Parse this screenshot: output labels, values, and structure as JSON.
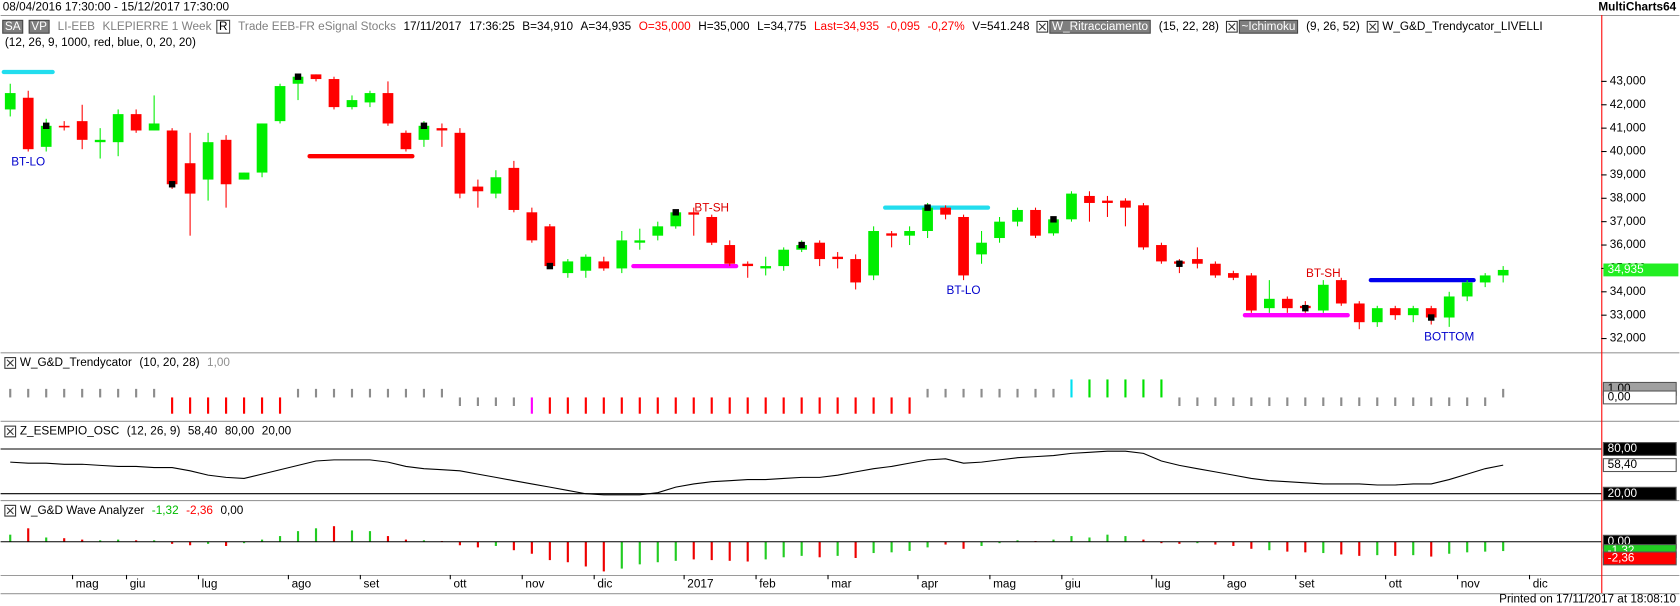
{
  "top": {
    "range": "08/04/2016 17:30:00 - 15/12/2017 17:30:00",
    "brand": "MultiCharts64"
  },
  "footer": "Printed on 17/11/2017 at 18:08:10",
  "chart_data": [
    {
      "type": "candlestick",
      "header": [
        {
          "text": "SA",
          "box": "#7f7f7f",
          "color": "#ffffff"
        },
        {
          "text": "VP",
          "box": "#7f7f7f",
          "color": "#ffffff"
        },
        {
          "text": "LI-EEB",
          "color": "#808080"
        },
        {
          "text": "KLEPIERRE 1 Week",
          "color": "#808080"
        },
        {
          "text": "R",
          "box": "#ffffff"
        },
        {
          "text": "Trade EEB-FR eSignal Stocks",
          "color": "#808080"
        },
        {
          "text": "17/11/2017"
        },
        {
          "text": "17:36:25"
        },
        {
          "text": "B=34,910"
        },
        {
          "text": "A=34,935"
        },
        {
          "text": "O=35,000",
          "color": "#ff0000"
        },
        {
          "text": "H=35,000"
        },
        {
          "text": "L=34,775"
        },
        {
          "text": "Last=34,935",
          "color": "#ff0000"
        },
        {
          "text": "-0,095",
          "color": "#ff0000"
        },
        {
          "text": "-0,27%",
          "color": "#ff0000"
        },
        {
          "text": "V=541.248"
        },
        {
          "text": "W_Ritracciamento",
          "box": "#7f7f7f",
          "color": "#ffffff",
          "check": true
        },
        {
          "text": "(15, 22, 28)"
        },
        {
          "text": "~Ichimoku",
          "box": "#7f7f7f",
          "color": "#ffffff",
          "check": true
        },
        {
          "text": "(9, 26, 52)"
        },
        {
          "text": "W_G&D_Trendycator_LIVELLI",
          "check": true
        }
      ],
      "subheader": "(12, 26, 9, 1000, red, blue, 0, 20, 20)",
      "categories": [
        null,
        null,
        null,
        null,
        "mag",
        null,
        null,
        "giu",
        null,
        null,
        null,
        "lug",
        null,
        null,
        null,
        null,
        "ago",
        null,
        null,
        null,
        "set",
        null,
        null,
        null,
        null,
        "ott",
        null,
        null,
        null,
        "nov",
        null,
        null,
        null,
        "dic",
        null,
        null,
        null,
        null,
        "2017",
        null,
        null,
        null,
        "feb",
        null,
        null,
        null,
        "mar",
        null,
        null,
        null,
        null,
        "apr",
        null,
        null,
        null,
        "mag",
        null,
        null,
        null,
        "giu",
        null,
        null,
        null,
        null,
        "lug",
        null,
        null,
        null,
        "ago",
        null,
        null,
        null,
        "set",
        null,
        null,
        null,
        null,
        "ott",
        null,
        null,
        null,
        "nov",
        null,
        null,
        null,
        "dic"
      ],
      "open": [
        41800,
        42300,
        40200,
        41100,
        41300,
        40400,
        40400,
        41600,
        40900,
        40900,
        39500,
        38800,
        40500,
        38800,
        39100,
        41300,
        42900,
        43300,
        43100,
        41900,
        42100,
        42500,
        40800,
        40500,
        41000,
        40800,
        38500,
        38200,
        39300,
        37400,
        36800,
        34800,
        34900,
        35300,
        35000,
        36100,
        36400,
        36800,
        37400,
        37200,
        36000,
        35200,
        35000,
        35100,
        35800,
        36100,
        35500,
        35400,
        34700,
        36500,
        36400,
        36600,
        37600,
        37200,
        35600,
        36300,
        37000,
        37500,
        36500,
        37100,
        38100,
        37900,
        37900,
        37700,
        36000,
        35300,
        35400,
        35200,
        34800,
        34700,
        33300,
        33700,
        33400,
        33200,
        34500,
        33500,
        32700,
        33300,
        33000,
        33300,
        32900,
        33800,
        34400,
        34700,
        null,
        null
      ],
      "high": [
        42900,
        42600,
        41400,
        41300,
        42000,
        41000,
        41800,
        41800,
        42400,
        41000,
        40800,
        40800,
        40700,
        39100,
        41200,
        42900,
        43300,
        43300,
        43200,
        42400,
        42600,
        43000,
        40900,
        41300,
        41200,
        41000,
        38800,
        39200,
        39600,
        37600,
        36900,
        35400,
        35600,
        35500,
        36600,
        36700,
        37000,
        37500,
        37600,
        37300,
        36200,
        35300,
        35500,
        35900,
        36200,
        36200,
        35700,
        35600,
        36800,
        36600,
        36800,
        37800,
        37700,
        37300,
        36600,
        37200,
        37600,
        37600,
        37200,
        38300,
        38300,
        38100,
        38000,
        37800,
        36100,
        35400,
        35900,
        35300,
        34900,
        34800,
        34500,
        33800,
        33600,
        34500,
        34600,
        33600,
        33400,
        33400,
        33400,
        33400,
        34000,
        34500,
        34800,
        35100,
        null,
        null
      ],
      "low": [
        41500,
        40000,
        40000,
        40900,
        40100,
        39700,
        39800,
        40800,
        40900,
        38400,
        36400,
        37900,
        37600,
        38800,
        38900,
        41200,
        42200,
        43000,
        41800,
        41800,
        41900,
        41100,
        40000,
        40200,
        40200,
        38000,
        37600,
        38000,
        37400,
        36100,
        35000,
        34600,
        34600,
        34900,
        34800,
        35800,
        36200,
        36700,
        36400,
        36000,
        35100,
        34600,
        34700,
        34900,
        35700,
        35100,
        35000,
        34100,
        34500,
        35900,
        36000,
        36300,
        37100,
        34500,
        35200,
        36100,
        36800,
        36300,
        36400,
        37000,
        37000,
        37200,
        36800,
        35800,
        35200,
        34800,
        35000,
        34600,
        34500,
        33100,
        33100,
        33100,
        33100,
        33100,
        33400,
        32400,
        32500,
        32800,
        32700,
        32600,
        32500,
        33600,
        34200,
        34400,
        null,
        null
      ],
      "close": [
        42500,
        40100,
        41100,
        41100,
        40500,
        40500,
        41600,
        40900,
        41200,
        38600,
        38200,
        40400,
        38600,
        39100,
        41200,
        42800,
        43200,
        43100,
        41900,
        42200,
        42500,
        41200,
        40100,
        41100,
        40900,
        38200,
        38300,
        38900,
        37500,
        36200,
        35100,
        35300,
        35500,
        35000,
        36200,
        36200,
        36800,
        37400,
        37300,
        36100,
        35200,
        35100,
        35100,
        35800,
        36000,
        35400,
        35400,
        34400,
        36600,
        36400,
        36600,
        37600,
        37300,
        34700,
        36100,
        37000,
        37500,
        36400,
        37100,
        38200,
        37800,
        37800,
        37600,
        35900,
        35300,
        35200,
        35200,
        34700,
        34600,
        33200,
        33700,
        33300,
        33300,
        34300,
        33500,
        32700,
        33300,
        33000,
        33300,
        32900,
        33800,
        34400,
        34700,
        34935,
        null,
        null
      ],
      "up_color": "#00ee00",
      "down_color": "#ff0000",
      "last": {
        "value": 34935,
        "label": "34,935",
        "color": "#22ee22"
      },
      "ylim": [
        31460,
        45840
      ],
      "yticks": [
        {
          "value": 43000,
          "label": "43,000"
        },
        {
          "value": 42000,
          "label": "42,000"
        },
        {
          "value": 41000,
          "label": "41,000"
        },
        {
          "value": 40000,
          "label": "40,000"
        },
        {
          "value": 39000,
          "label": "39,000"
        },
        {
          "value": 38000,
          "label": "38,000"
        },
        {
          "value": 37000,
          "label": "37,000"
        },
        {
          "value": 36000,
          "label": "36,000"
        },
        {
          "value": 35000,
          "label": "35,000"
        },
        {
          "value": 34000,
          "label": "34,000"
        },
        {
          "value": 33000,
          "label": "33,000"
        },
        {
          "value": 32000,
          "label": "32,000"
        }
      ],
      "annotations": [
        {
          "text": "BT-LO",
          "color": "#0000cc"
        },
        {
          "text": "BT-SH",
          "color": "#dd0000"
        },
        {
          "text": "BT-LO",
          "color": "#0000cc"
        },
        {
          "text": "BT-SH",
          "color": "#dd0000"
        },
        {
          "text": "BOTTOM",
          "color": "#0000cc"
        }
      ],
      "levels": [
        {
          "value": 43400,
          "color": "#22ddee"
        },
        {
          "value": 39800,
          "color": "#ff0000"
        },
        {
          "value": 35100,
          "color": "#ff00ff"
        },
        {
          "value": 37600,
          "color": "#22ddee"
        },
        {
          "value": 33000,
          "color": "#ff00ff"
        },
        {
          "value": 34500,
          "color": "#0000ee"
        }
      ]
    },
    {
      "type": "bar",
      "header": [
        {
          "text": "W_G&D_Trendycator",
          "check": true
        },
        {
          "text": "(10, 20, 28)"
        },
        {
          "text": "1,00",
          "color": "#909090"
        }
      ],
      "values": [
        1,
        1,
        1,
        1,
        1,
        1,
        1,
        1,
        1,
        -1.9,
        -1.9,
        -1.9,
        -1.9,
        -1.9,
        -1.9,
        -1.9,
        1,
        1,
        1,
        1,
        1,
        1,
        1,
        1,
        1,
        -1,
        -1,
        -1,
        -1,
        -1.9,
        -1.9,
        -1.9,
        -1.9,
        -1.9,
        -1.9,
        -1.9,
        -1.9,
        -1.9,
        -1.9,
        -1.9,
        -1.9,
        -1.9,
        -1.9,
        -1.9,
        -1.9,
        -1.9,
        -1.9,
        -1.9,
        -1.9,
        -1.9,
        -1.9,
        1,
        1,
        1,
        1,
        1,
        1,
        1,
        1,
        2.1,
        2.1,
        2.1,
        2.1,
        2.1,
        2.1,
        -1,
        -1,
        -1,
        -1,
        -1,
        -1,
        -1,
        -1,
        -1,
        -1,
        -1,
        -1,
        -1,
        -1,
        -1,
        -1,
        -1,
        -1,
        1
      ],
      "colors": [
        "#8c8c8c",
        "#8c8c8c",
        "#8c8c8c",
        "#8c8c8c",
        "#8c8c8c",
        "#8c8c8c",
        "#8c8c8c",
        "#8c8c8c",
        "#8c8c8c",
        "#ff0000",
        "#ff0000",
        "#ff0000",
        "#ff0000",
        "#ff0000",
        "#ff0000",
        "#ff0000",
        "#8c8c8c",
        "#8c8c8c",
        "#8c8c8c",
        "#8c8c8c",
        "#8c8c8c",
        "#8c8c8c",
        "#8c8c8c",
        "#8c8c8c",
        "#8c8c8c",
        "#8c8c8c",
        "#8c8c8c",
        "#8c8c8c",
        "#8c8c8c",
        "#ff00ff",
        "#ff0000",
        "#ff0000",
        "#ff0000",
        "#ff0000",
        "#ff0000",
        "#ff0000",
        "#ff0000",
        "#ff0000",
        "#ff0000",
        "#ff0000",
        "#ff0000",
        "#ff0000",
        "#ff0000",
        "#ff0000",
        "#ff0000",
        "#ff0000",
        "#ff0000",
        "#ff0000",
        "#ff0000",
        "#ff0000",
        "#ff0000",
        "#8c8c8c",
        "#8c8c8c",
        "#8c8c8c",
        "#8c8c8c",
        "#8c8c8c",
        "#8c8c8c",
        "#8c8c8c",
        "#8c8c8c",
        "#00e0f0",
        "#00e000",
        "#00e000",
        "#00e000",
        "#00e000",
        "#00e000",
        "#8c8c8c",
        "#8c8c8c",
        "#8c8c8c",
        "#8c8c8c",
        "#8c8c8c",
        "#8c8c8c",
        "#8c8c8c",
        "#8c8c8c",
        "#8c8c8c",
        "#8c8c8c",
        "#8c8c8c",
        "#8c8c8c",
        "#8c8c8c",
        "#8c8c8c",
        "#8c8c8c",
        "#8c8c8c",
        "#8c8c8c",
        "#8c8c8c",
        "#8c8c8c"
      ],
      "ylim": [
        -2.6,
        4.9
      ],
      "yticks": [
        {
          "value": 1,
          "label": "1,00"
        },
        {
          "value": 0,
          "label": "0,00"
        }
      ],
      "ytick_boxes": [
        "#a0a0a0",
        "#ffffff"
      ]
    },
    {
      "type": "line",
      "header": [
        {
          "text": "Z_ESEMPIO_OSC",
          "check": true
        },
        {
          "text": "(12, 26, 9)"
        },
        {
          "text": "58,40"
        },
        {
          "text": "80,00"
        },
        {
          "text": "20,00"
        }
      ],
      "values": [
        62.4,
        61.0,
        61.0,
        59.5,
        59.5,
        58.0,
        56.6,
        56.6,
        55.1,
        55.1,
        50.7,
        44.9,
        41.9,
        40.5,
        46.3,
        52.2,
        58.0,
        63.9,
        65.4,
        65.4,
        65.4,
        62.4,
        56.6,
        53.6,
        52.2,
        50.7,
        46.3,
        41.9,
        37.5,
        33.1,
        28.8,
        24.4,
        20.0,
        18.5,
        18.5,
        18.5,
        21.4,
        28.8,
        33.1,
        36.1,
        37.5,
        39.0,
        39.0,
        40.5,
        41.9,
        41.9,
        44.9,
        49.3,
        53.6,
        56.6,
        61.0,
        65.4,
        66.8,
        61.0,
        62.4,
        65.4,
        68.3,
        69.8,
        71.2,
        74.1,
        75.6,
        77.1,
        77.1,
        74.1,
        63.9,
        58.0,
        53.6,
        49.3,
        44.9,
        40.5,
        37.5,
        36.1,
        34.6,
        33.1,
        33.1,
        33.1,
        31.7,
        31.7,
        33.1,
        33.1,
        39.0,
        46.3,
        53.6,
        58.4
      ],
      "color": "#000000",
      "levels": [
        80,
        20
      ],
      "ylim": [
        13,
        115
      ],
      "yticks": [
        {
          "value": 80,
          "label": "80,00"
        },
        {
          "value": 58.4,
          "label": "58,40"
        },
        {
          "value": 20,
          "label": "20,00"
        }
      ],
      "ytick_boxes": [
        "#000000",
        "#ffffff",
        "#000000"
      ]
    },
    {
      "type": "bar",
      "header": [
        {
          "text": "W_G&D Wave Analyzer",
          "check": true
        },
        {
          "text": "-1,32",
          "color": "#00bb00"
        },
        {
          "text": "-2,36",
          "color": "#ff0000"
        },
        {
          "text": "0,00"
        }
      ],
      "values": [
        1.0,
        1.9,
        0.6,
        0.5,
        0.3,
        0.2,
        0.3,
        0.2,
        0.2,
        -0.3,
        -0.5,
        -0.3,
        -0.6,
        -0.2,
        0.3,
        0.8,
        1.5,
        1.9,
        2.2,
        1.6,
        1.5,
        0.8,
        0.3,
        0.2,
        0.1,
        -0.5,
        -0.8,
        -0.6,
        -1.2,
        -1.7,
        -2.6,
        -2.9,
        -3.5,
        -4.2,
        -3.8,
        -3.2,
        -2.9,
        -2.7,
        -2.5,
        -2.6,
        -2.7,
        -2.8,
        -2.5,
        -2.2,
        -2.0,
        -2.2,
        -2.0,
        -2.3,
        -1.6,
        -1.5,
        -1.3,
        -0.8,
        -0.4,
        -1.0,
        -0.6,
        -0.2,
        0.2,
        0.1,
        0.3,
        0.8,
        0.6,
        1.0,
        0.8,
        0.3,
        -0.2,
        -0.3,
        -0.2,
        -0.4,
        -0.6,
        -1.0,
        -1.2,
        -1.4,
        -1.5,
        -1.6,
        -1.8,
        -2.0,
        -1.9,
        -2.0,
        -1.9,
        -2.1,
        -1.7,
        -1.5,
        -1.4,
        -1.32
      ],
      "colors": [
        "#22cc22",
        "#ee0000",
        "#22cc22",
        "#ee0000",
        "#ee0000",
        "#22cc22",
        "#22cc22",
        "#ee0000",
        "#22cc22",
        "#ee0000",
        "#ee0000",
        "#22cc22",
        "#ee0000",
        "#22cc22",
        "#22cc22",
        "#22cc22",
        "#22cc22",
        "#22cc22",
        "#ee0000",
        "#22cc22",
        "#22cc22",
        "#ee0000",
        "#ee0000",
        "#22cc22",
        "#ee0000",
        "#ee0000",
        "#ee0000",
        "#22cc22",
        "#ee0000",
        "#ee0000",
        "#ee0000",
        "#ee0000",
        "#ee0000",
        "#ee0000",
        "#22cc22",
        "#22cc22",
        "#22cc22",
        "#22cc22",
        "#ee0000",
        "#ee0000",
        "#ee0000",
        "#ee0000",
        "#22cc22",
        "#22cc22",
        "#22cc22",
        "#ee0000",
        "#22cc22",
        "#ee0000",
        "#22cc22",
        "#22cc22",
        "#22cc22",
        "#22cc22",
        "#ee0000",
        "#ee0000",
        "#22cc22",
        "#22cc22",
        "#22cc22",
        "#ee0000",
        "#22cc22",
        "#22cc22",
        "#22cc22",
        "#22cc22",
        "#22cc22",
        "#ee0000",
        "#ee0000",
        "#ee0000",
        "#22cc22",
        "#ee0000",
        "#ee0000",
        "#ee0000",
        "#22cc22",
        "#ee0000",
        "#ee0000",
        "#22cc22",
        "#ee0000",
        "#ee0000",
        "#22cc22",
        "#ee0000",
        "#22cc22",
        "#ee0000",
        "#22cc22",
        "#22cc22",
        "#22cc22",
        "#22cc22"
      ],
      "ylim": [
        -4.7,
        5.6
      ],
      "yticks": [
        {
          "value": 0,
          "label": "0,00"
        },
        {
          "value": -1.32,
          "label": "-1,32"
        },
        {
          "value": -2.36,
          "label": "-2,36"
        }
      ],
      "ytick_boxes": [
        "#000000",
        "#22cc22",
        "#ff0000"
      ]
    }
  ]
}
